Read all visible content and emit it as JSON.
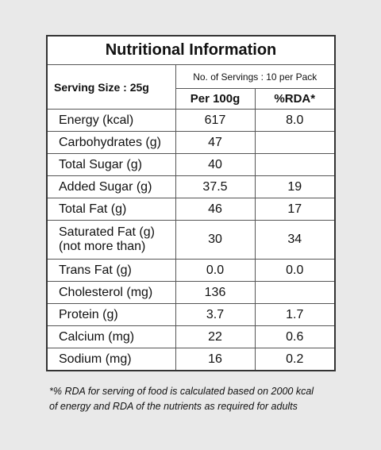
{
  "header": {
    "title": "Nutritional Information",
    "serving_size": "Serving Size : 25g",
    "servings": "No. of Servings : 10 per Pack",
    "col_per100g": "Per 100g",
    "col_rda": "%RDA*"
  },
  "table": {
    "rows": [
      {
        "name": "Energy (kcal)",
        "per100g": "617",
        "rda": "8.0"
      },
      {
        "name": "Carbohydrates (g)",
        "per100g": "47"
      },
      {
        "name": "Total Sugar (g)",
        "per100g": "40"
      },
      {
        "name": "Added Sugar (g)",
        "per100g": "37.5",
        "rda": "19"
      },
      {
        "name": "Total Fat (g)",
        "per100g": "46",
        "rda": "17"
      },
      {
        "name": "Saturated Fat (g)",
        "note": "(not more than)",
        "per100g": "30",
        "rda": "34"
      },
      {
        "name": "Trans Fat (g)",
        "per100g": "0.0",
        "rda": "0.0"
      },
      {
        "name": "Cholesterol (mg)",
        "per100g": "136"
      },
      {
        "name": "Protein (g)",
        "per100g": "3.7",
        "rda": "1.7"
      },
      {
        "name": "Calcium (mg)",
        "per100g": "22",
        "rda": "0.6"
      },
      {
        "name": "Sodium (mg)",
        "per100g": "16",
        "rda": "0.2"
      }
    ]
  },
  "footnote": {
    "lines": [
      "*% RDA for serving of food is calculated based on 2000 kcal",
      "of energy and RDA of the nutrients as required for adults"
    ]
  }
}
